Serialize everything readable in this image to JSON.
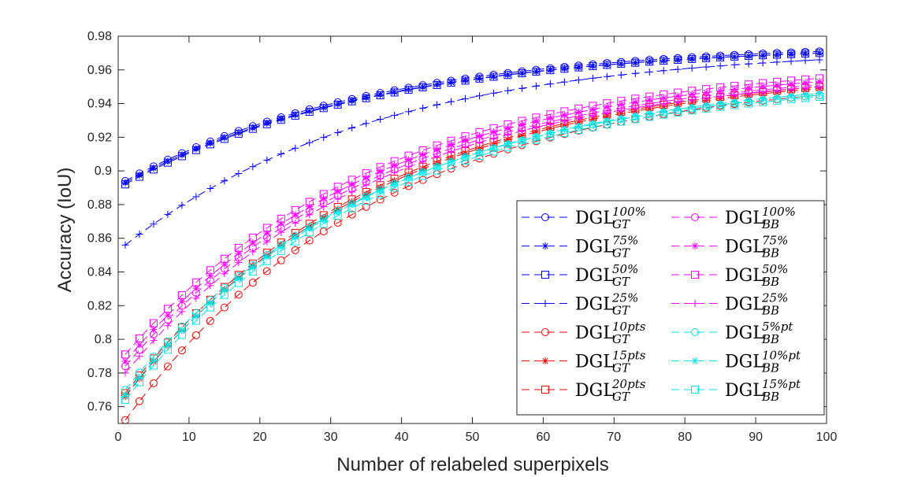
{
  "chart_data": {
    "type": "line",
    "xlabel": "Number of relabeled superpixels",
    "ylabel": "Accuracy (IoU)",
    "xlim": [
      0,
      100
    ],
    "ylim": [
      0.75,
      0.98
    ],
    "xticks": [
      "0",
      "10",
      "20",
      "30",
      "40",
      "50",
      "60",
      "70",
      "80",
      "90",
      "100"
    ],
    "yticks": [
      "0.76",
      "0.78",
      "0.8",
      "0.82",
      "0.84",
      "0.86",
      "0.88",
      "0.9",
      "0.92",
      "0.94",
      "0.96",
      "0.98"
    ],
    "grid": false,
    "legend_placement": "bottom-right",
    "series": [
      {
        "name": "DGL",
        "sup": "100%",
        "sub": "GT",
        "color": "#0000ff",
        "marker": "circle",
        "start": 0.894,
        "end": 0.971
      },
      {
        "name": "DGL",
        "sup": "75%",
        "sub": "GT",
        "color": "#0000ff",
        "marker": "asterisk",
        "start": 0.893,
        "end": 0.97
      },
      {
        "name": "DGL",
        "sup": "50%",
        "sub": "GT",
        "color": "#0000ff",
        "marker": "square",
        "start": 0.892,
        "end": 0.97
      },
      {
        "name": "DGL",
        "sup": "25%",
        "sub": "GT",
        "color": "#0000ff",
        "marker": "plus",
        "start": 0.856,
        "end": 0.966
      },
      {
        "name": "DGL",
        "sup": "10pts",
        "sub": "GT",
        "color": "#ff0000",
        "marker": "circle",
        "start": 0.752,
        "end": 0.945
      },
      {
        "name": "DGL",
        "sup": "15pts",
        "sub": "GT",
        "color": "#ff0000",
        "marker": "asterisk",
        "start": 0.766,
        "end": 0.949
      },
      {
        "name": "DGL",
        "sup": "20pts",
        "sub": "GT",
        "color": "#ff0000",
        "marker": "square",
        "start": 0.768,
        "end": 0.95
      },
      {
        "name": "DGL",
        "sup": "100%",
        "sub": "BB",
        "color": "#ff00ff",
        "marker": "circle",
        "start": 0.784,
        "end": 0.951
      },
      {
        "name": "DGL",
        "sup": "75%",
        "sub": "BB",
        "color": "#ff00ff",
        "marker": "asterisk",
        "start": 0.787,
        "end": 0.953
      },
      {
        "name": "DGL",
        "sup": "50%",
        "sub": "BB",
        "color": "#ff00ff",
        "marker": "square",
        "start": 0.791,
        "end": 0.955
      },
      {
        "name": "DGL",
        "sup": "25%",
        "sub": "BB",
        "color": "#ff00ff",
        "marker": "plus",
        "start": 0.78,
        "end": 0.95
      },
      {
        "name": "DGL",
        "sup": "5%pt",
        "sub": "BB",
        "color": "#00e5e5",
        "marker": "circle",
        "start": 0.77,
        "end": 0.945
      },
      {
        "name": "DGL",
        "sup": "10%pt",
        "sub": "BB",
        "color": "#00e5e5",
        "marker": "asterisk",
        "start": 0.767,
        "end": 0.946
      },
      {
        "name": "DGL",
        "sup": "15%pt",
        "sub": "BB",
        "color": "#00e5e5",
        "marker": "square",
        "start": 0.764,
        "end": 0.944
      }
    ]
  }
}
